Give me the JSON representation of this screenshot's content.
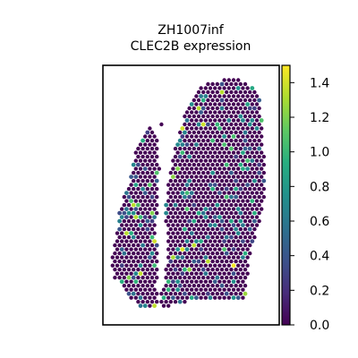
{
  "chart_data": {
    "type": "scatter",
    "title": "ZH1007inf",
    "subtitle": "CLEC2B expression",
    "xlabel": "",
    "ylabel": "",
    "colorbar": {
      "min": 0.0,
      "max": 1.5,
      "ticks": [
        0.0,
        0.2,
        0.4,
        0.6,
        0.8,
        1.0,
        1.2,
        1.4
      ],
      "tick_labels": [
        "0.0",
        "0.2",
        "0.4",
        "0.6",
        "0.8",
        "1.0",
        "1.2",
        "1.4"
      ],
      "colormap": "viridis"
    },
    "grid": false,
    "legend": "colorbar-right"
  }
}
